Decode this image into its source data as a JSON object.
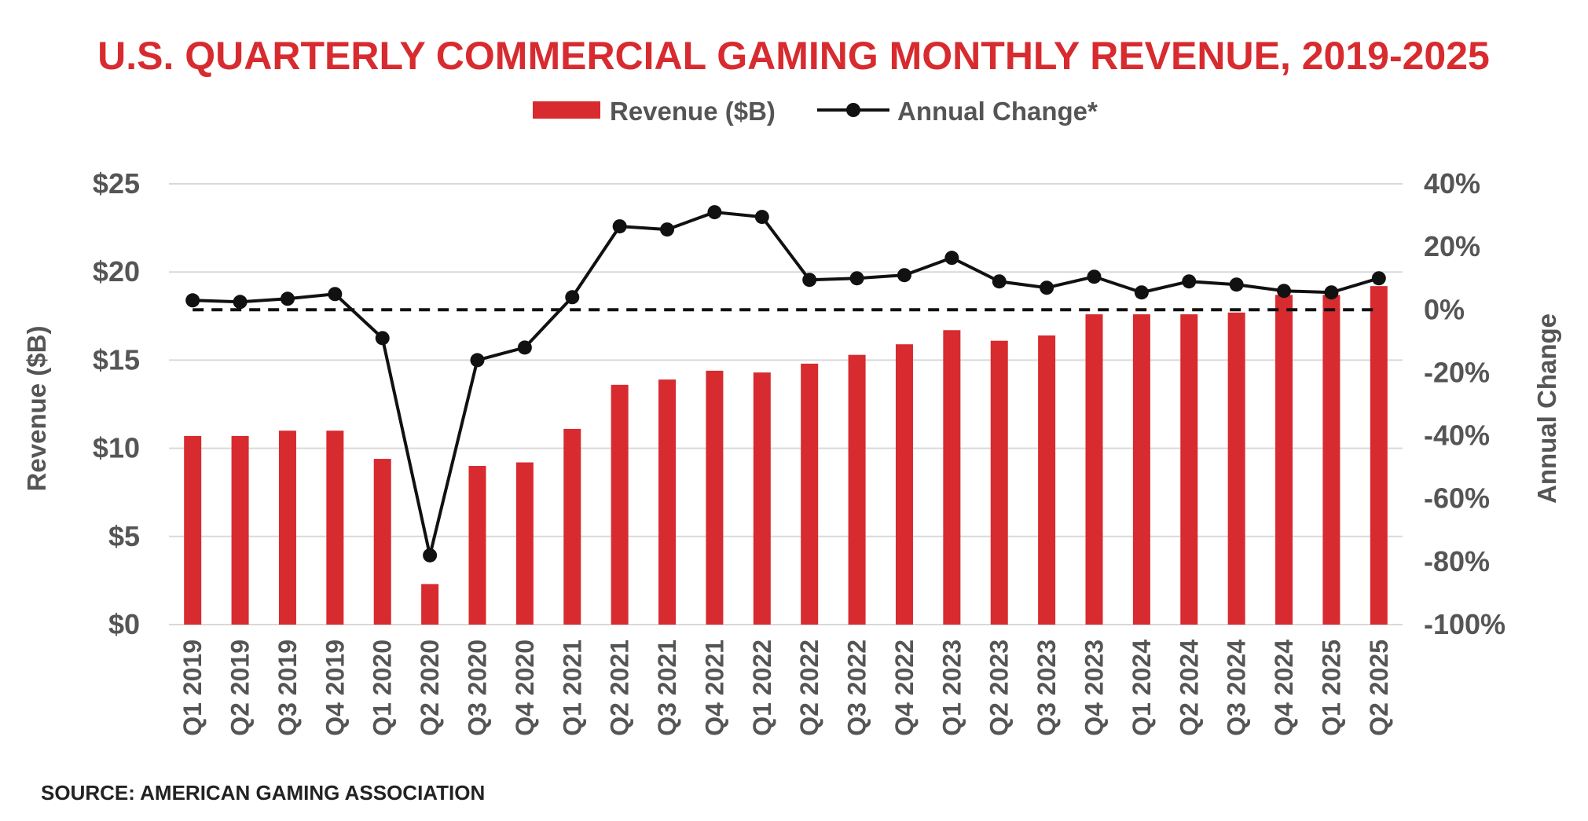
{
  "colors": {
    "bar": "#d72b2f",
    "line": "#111111",
    "title": "#d72b2f",
    "text": "#555555",
    "grid": "#d9d9d9",
    "baseline": "#111111"
  },
  "chart_data": {
    "type": "bar+line",
    "title": "U.S. QUARTERLY COMMERCIAL GAMING MONTHLY REVENUE, 2019-2025",
    "legend": {
      "revenue": "Revenue ($B)",
      "change": "Annual Change*"
    },
    "y_left": {
      "label": "Revenue ($B)",
      "range": [
        0,
        25
      ],
      "ticks": [
        0,
        5,
        10,
        15,
        20,
        25
      ],
      "tick_labels": [
        "$0",
        "$5",
        "$10",
        "$15",
        "$20",
        "$25"
      ]
    },
    "y_right": {
      "label": "Annual Change",
      "range": [
        -100,
        40
      ],
      "ticks": [
        -100,
        -80,
        -60,
        -40,
        -20,
        0,
        20,
        40
      ],
      "tick_labels": [
        "-100%",
        "-80%",
        "-60%",
        "-40%",
        "-20%",
        "0%",
        "20%",
        "40%"
      ]
    },
    "categories": [
      "Q1 2019",
      "Q2 2019",
      "Q3 2019",
      "Q4 2019",
      "Q1 2020",
      "Q2 2020",
      "Q3 2020",
      "Q4 2020",
      "Q1 2021",
      "Q2 2021",
      "Q3 2021",
      "Q4 2021",
      "Q1 2022",
      "Q2 2022",
      "Q3 2022",
      "Q4 2022",
      "Q1 2023",
      "Q2 2023",
      "Q3 2023",
      "Q4 2023",
      "Q1 2024",
      "Q2 2024",
      "Q3 2024",
      "Q4 2024",
      "Q1 2025",
      "Q2 2025"
    ],
    "series": [
      {
        "name": "Revenue ($B)",
        "type": "bar",
        "axis": "left",
        "values": [
          10.7,
          10.7,
          11.0,
          11.0,
          9.4,
          2.3,
          9.0,
          9.2,
          11.1,
          13.6,
          13.9,
          14.4,
          14.3,
          14.8,
          15.3,
          15.9,
          16.7,
          16.1,
          16.4,
          17.6,
          17.6,
          17.6,
          17.7,
          18.7,
          18.7,
          19.2
        ]
      },
      {
        "name": "Annual Change*",
        "type": "line",
        "axis": "right",
        "values": [
          3,
          2.5,
          3.5,
          5,
          -9,
          -78,
          -16,
          -12,
          4,
          26.5,
          25.5,
          31,
          29.5,
          9.5,
          10,
          11,
          16.5,
          9,
          7,
          10.5,
          5.5,
          9,
          8,
          6,
          5.5,
          10
        ]
      }
    ],
    "reference_line": {
      "axis": "right",
      "value": 0,
      "style": "dashed"
    },
    "source": "SOURCE: AMERICAN GAMING ASSOCIATION"
  }
}
